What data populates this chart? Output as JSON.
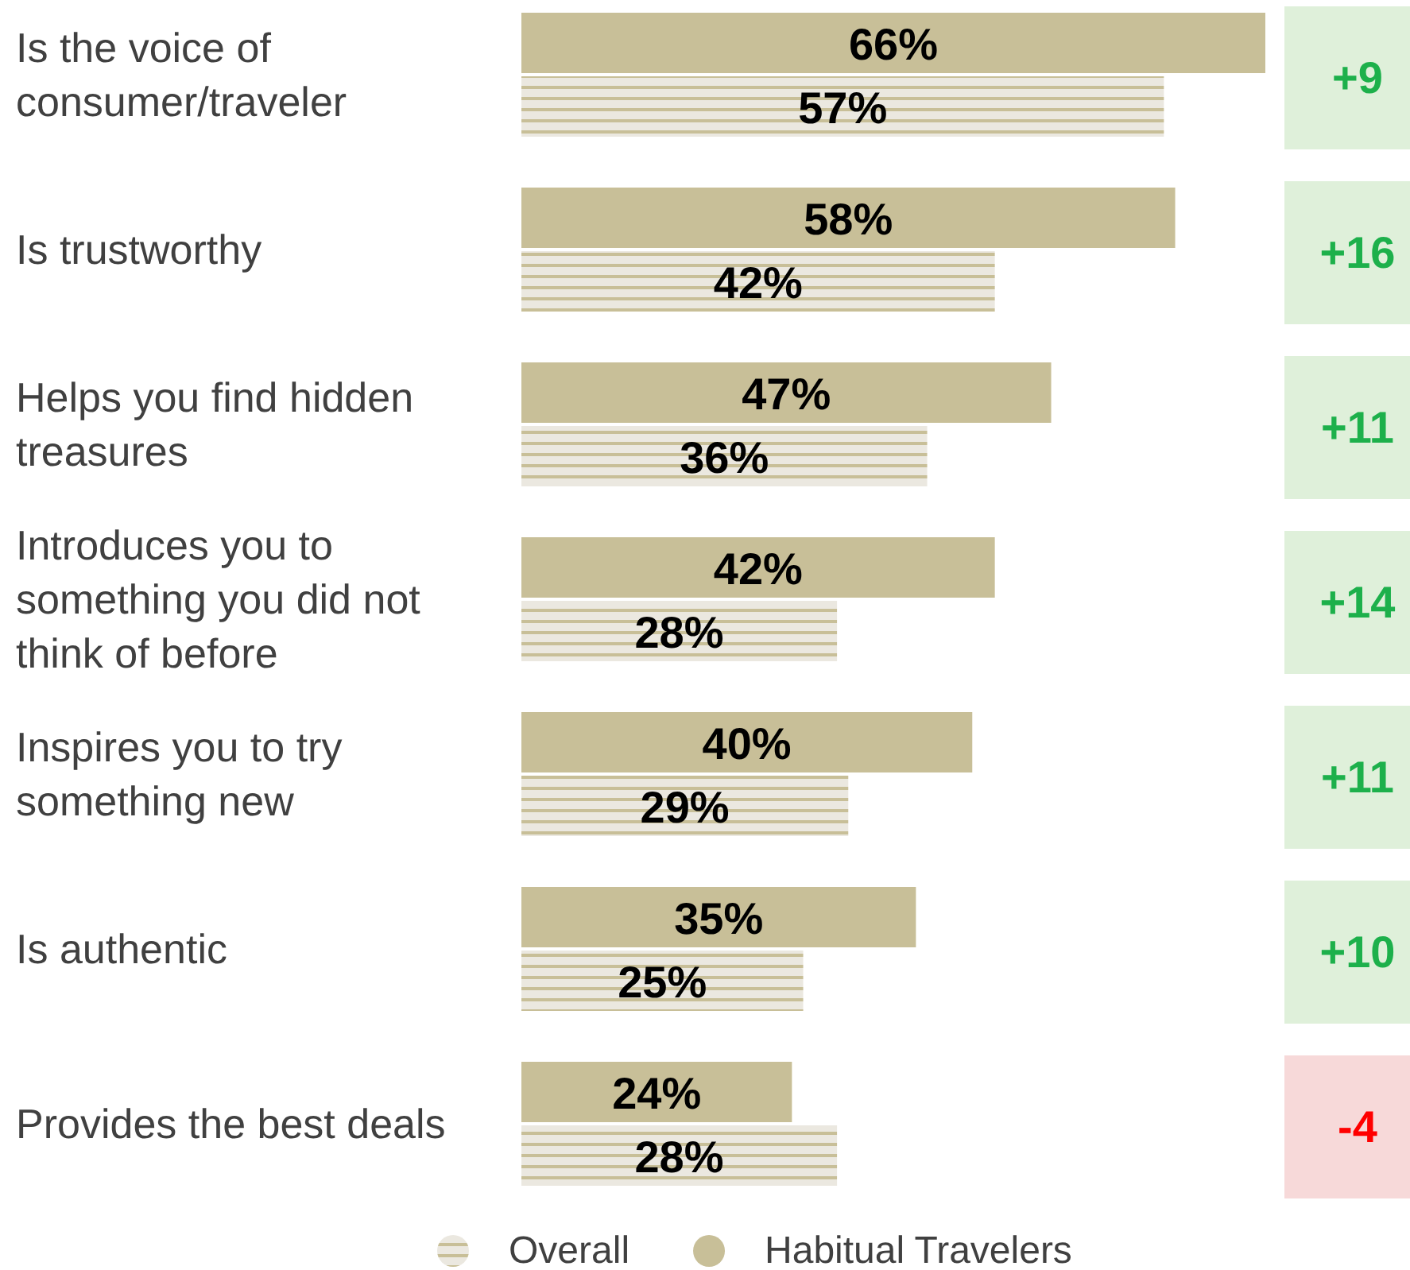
{
  "chart_data": {
    "type": "bar",
    "orientation": "horizontal",
    "categories": [
      "Is the voice of consumer/traveler",
      "Is trustworthy",
      "Helps you find hidden treasures",
      "Introduces you to something you did not think of before",
      "Inspires you to try something new",
      "Is authentic",
      "Provides the best deals"
    ],
    "series": [
      {
        "name": "Habitual Travelers",
        "color": "#c8bf98",
        "values": [
          66,
          58,
          47,
          42,
          40,
          35,
          24
        ],
        "value_labels": [
          "66%",
          "58%",
          "47%",
          "42%",
          "40%",
          "35%",
          "24%"
        ]
      },
      {
        "name": "Overall",
        "color": "#ebe8e0",
        "values": [
          57,
          42,
          36,
          28,
          29,
          25,
          28
        ],
        "value_labels": [
          "57%",
          "42%",
          "36%",
          "28%",
          "29%",
          "25%",
          "28%"
        ]
      }
    ],
    "legend": "bottom",
    "annotations": [
      "+9",
      "+16",
      "+11",
      "+14",
      "+11",
      "+10",
      "-4"
    ]
  }
}
